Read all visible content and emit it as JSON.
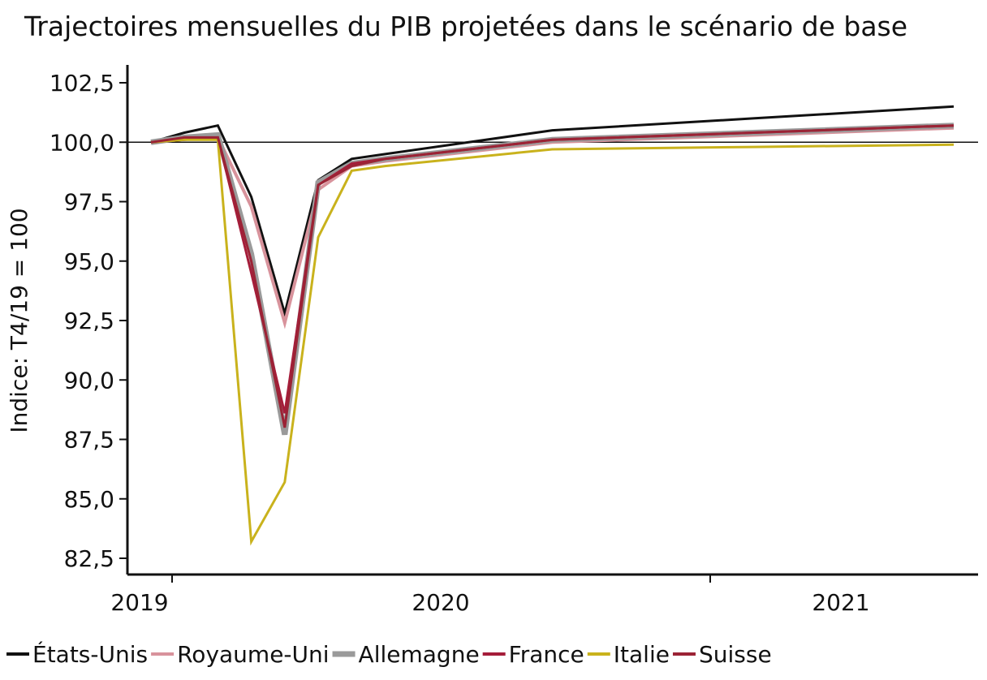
{
  "chart_data": {
    "type": "line",
    "title": "Trajectoires mensuelles du PIB projetées dans le scénario de base",
    "ylabel": "Indice: T4/19 = 100",
    "xlabel": "",
    "ylim": [
      82.5,
      102.5
    ],
    "yticks": [
      "102,5",
      "100,0",
      "97,5",
      "95,0",
      "92,5",
      "90,0",
      "87,5",
      "85,0",
      "82,5"
    ],
    "ytick_values": [
      102.5,
      100,
      97.5,
      95,
      92.5,
      90,
      87.5,
      85,
      82.5
    ],
    "xticks": [
      "2019",
      "2020",
      "2021"
    ],
    "reference_line": 100,
    "legend_position": "bottom",
    "x": [
      "2019-12",
      "2020-01",
      "2020-02",
      "2020-03",
      "2020-04",
      "2020-05",
      "2020-06",
      "2020-07",
      "2020-12",
      "2021-06",
      "2021-12"
    ],
    "series": [
      {
        "name": "États-Unis",
        "color": "#111111",
        "width": 3,
        "values": [
          100.0,
          100.4,
          100.7,
          97.7,
          92.8,
          98.4,
          99.3,
          99.5,
          100.5,
          101.0,
          101.5
        ]
      },
      {
        "name": "Royaume-Uni",
        "color": "#d8939c",
        "width": 4,
        "values": [
          100.0,
          100.2,
          100.2,
          97.3,
          92.4,
          98.0,
          99.0,
          99.2,
          100.0,
          100.3,
          100.6
        ]
      },
      {
        "name": "Allemagne",
        "color": "#9a9a9a",
        "width": 7,
        "values": [
          100.0,
          100.2,
          100.3,
          95.3,
          87.7,
          98.3,
          99.1,
          99.3,
          100.1,
          100.4,
          100.7
        ]
      },
      {
        "name": "France",
        "color": "#a51d3a",
        "width": 3,
        "values": [
          100.0,
          100.1,
          100.2,
          94.5,
          88.6,
          98.2,
          99.1,
          99.3,
          100.1,
          100.4,
          100.7
        ]
      },
      {
        "name": "Italie",
        "color": "#c9b21c",
        "width": 3,
        "values": [
          100.0,
          100.1,
          100.1,
          83.2,
          85.7,
          96.0,
          98.8,
          99.0,
          99.7,
          99.8,
          99.9
        ]
      },
      {
        "name": "Suisse",
        "color": "#9b2335",
        "width": 3,
        "values": [
          100.0,
          100.2,
          100.2,
          95.0,
          88.0,
          98.2,
          99.0,
          99.3,
          100.1,
          100.4,
          100.7
        ]
      }
    ]
  }
}
